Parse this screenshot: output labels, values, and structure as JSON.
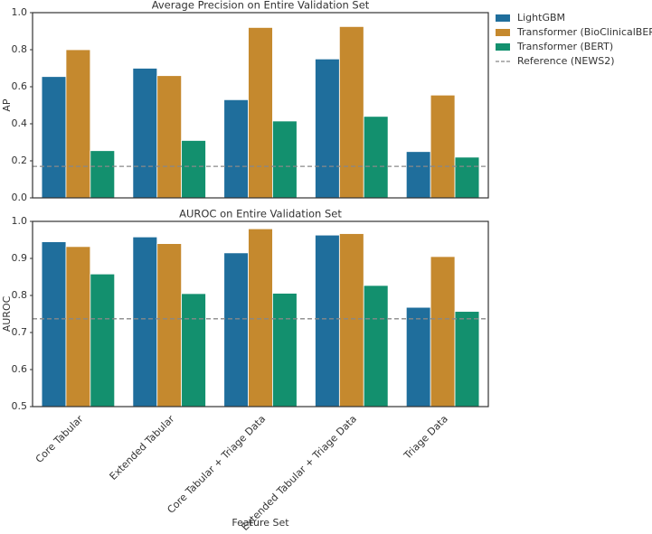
{
  "chart_data": [
    {
      "type": "bar",
      "title": "Average Precision on Entire Validation Set",
      "ylabel": "AP",
      "series": [
        {
          "name": "LightGBM",
          "color": "#1f6e9c",
          "values": [
            0.655,
            0.7,
            0.53,
            0.75,
            0.25
          ]
        },
        {
          "name": "Transformer (BioClinicalBERT)",
          "color": "#c5892e",
          "values": [
            0.8,
            0.66,
            0.92,
            0.925,
            0.555
          ]
        },
        {
          "name": "Transformer (BERT)",
          "color": "#13906e",
          "values": [
            0.255,
            0.31,
            0.415,
            0.44,
            0.22
          ]
        }
      ],
      "reference": {
        "name": "Reference (NEWS2)",
        "value": 0.17,
        "color": "#888888"
      },
      "ylim": [
        0,
        1
      ],
      "yticks": [
        {
          "value": 0,
          "label": "0.0"
        },
        0.2,
        0.4,
        0.6,
        0.8,
        {
          "value": 1,
          "label": "1.0"
        }
      ],
      "legend": "outside-upper-right"
    },
    {
      "type": "bar",
      "title": "AUROC on Entire Validation Set",
      "ylabel": "AUROC",
      "xlabel": "Feature Set",
      "categories": [
        "Core Tabular",
        "Extended Tabular",
        "Core Tabular + Triage Data",
        "Extended Tabular + Triage Data",
        "Triage Data"
      ],
      "series": [
        {
          "color": "#1f6e9c",
          "values": [
            0.945,
            0.958,
            0.915,
            0.963,
            0.768
          ]
        },
        {
          "color": "#c5892e",
          "values": [
            0.932,
            0.94,
            0.98,
            0.967,
            0.905
          ]
        },
        {
          "color": "#13906e",
          "values": [
            0.858,
            0.805,
            0.806,
            0.827,
            0.757
          ]
        }
      ],
      "reference": {
        "value": 0.737,
        "color": "#888888"
      },
      "ylim": [
        0.5,
        1
      ],
      "yticks": [
        0.5,
        0.6,
        0.7,
        0.8,
        0.9,
        {
          "value": 1,
          "label": "1.0"
        }
      ]
    }
  ]
}
